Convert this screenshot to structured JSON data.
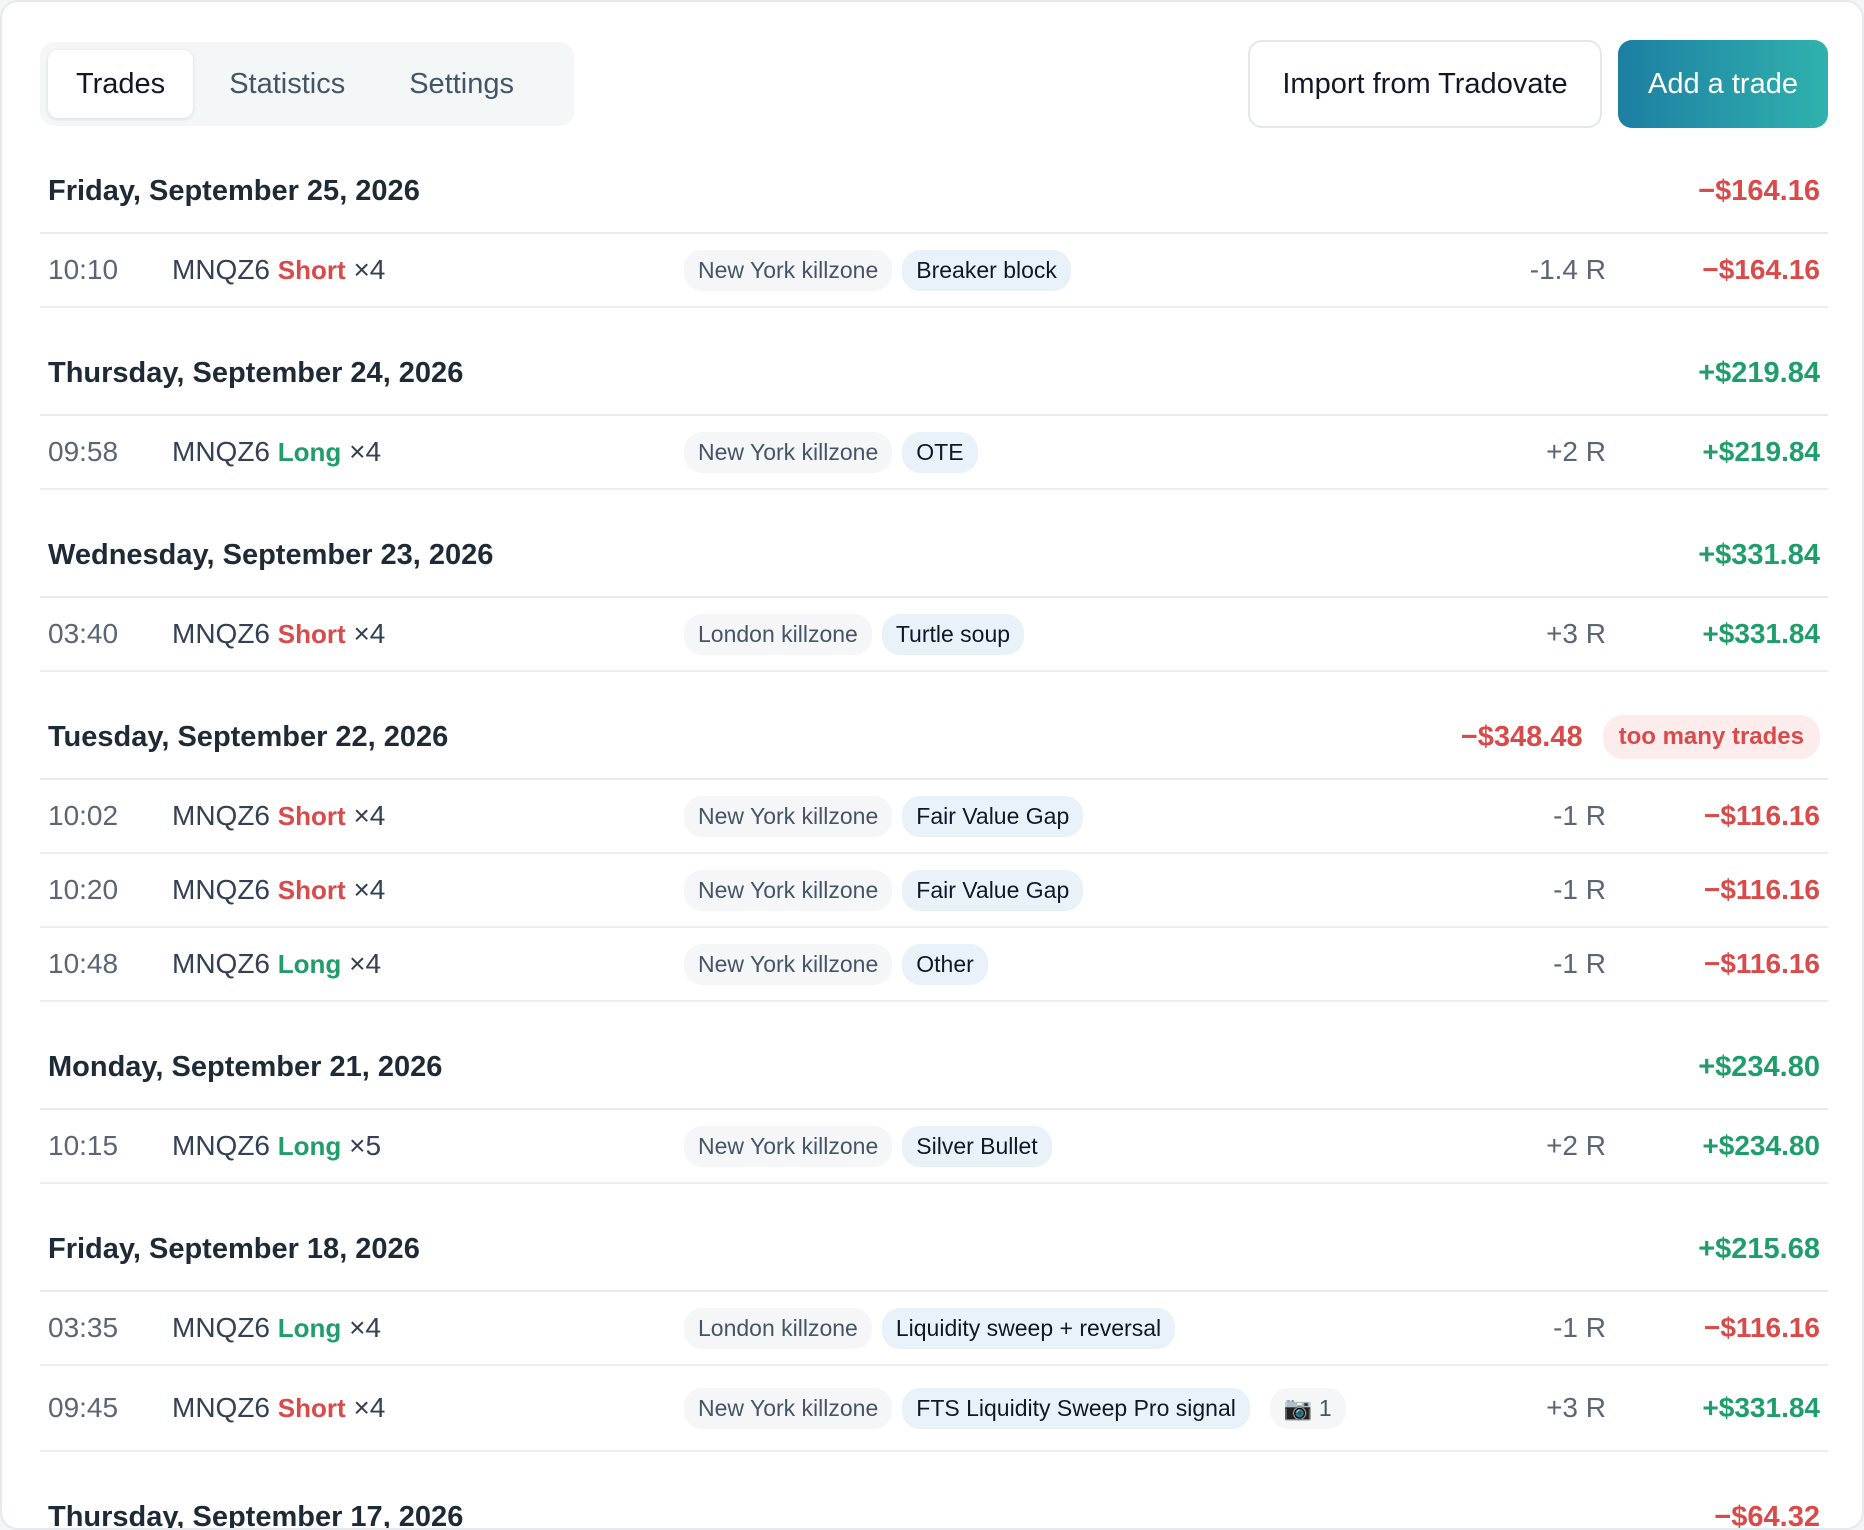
{
  "tabs": {
    "trades": "Trades",
    "statistics": "Statistics",
    "settings": "Settings"
  },
  "actions": {
    "import": "Import from Tradovate",
    "add": "Add a trade"
  },
  "days": [
    {
      "title": "Friday, September 25, 2026",
      "total": "−$164.16",
      "total_sign": "neg",
      "trades": [
        {
          "time": "10:10",
          "symbol": "MNQZ6",
          "side": "Short",
          "side_sign": "neg",
          "qty": "×4",
          "session": "New York killzone",
          "setup": "Breaker block",
          "r": "-1.4 R",
          "pnl": "−$164.16",
          "pnl_sign": "neg"
        }
      ]
    },
    {
      "title": "Thursday, September 24, 2026",
      "total": "+$219.84",
      "total_sign": "pos",
      "trades": [
        {
          "time": "09:58",
          "symbol": "MNQZ6",
          "side": "Long",
          "side_sign": "pos",
          "qty": "×4",
          "session": "New York killzone",
          "setup": "OTE",
          "r": "+2 R",
          "pnl": "+$219.84",
          "pnl_sign": "pos"
        }
      ]
    },
    {
      "title": "Wednesday, September 23, 2026",
      "total": "+$331.84",
      "total_sign": "pos",
      "trades": [
        {
          "time": "03:40",
          "symbol": "MNQZ6",
          "side": "Short",
          "side_sign": "neg",
          "qty": "×4",
          "session": "London killzone",
          "setup": "Turtle soup",
          "r": "+3 R",
          "pnl": "+$331.84",
          "pnl_sign": "pos"
        }
      ]
    },
    {
      "title": "Tuesday, September 22, 2026",
      "total": "−$348.48",
      "total_sign": "neg",
      "badge": "too many trades",
      "trades": [
        {
          "time": "10:02",
          "symbol": "MNQZ6",
          "side": "Short",
          "side_sign": "neg",
          "qty": "×4",
          "session": "New York killzone",
          "setup": "Fair Value Gap",
          "r": "-1 R",
          "pnl": "−$116.16",
          "pnl_sign": "neg"
        },
        {
          "time": "10:20",
          "symbol": "MNQZ6",
          "side": "Short",
          "side_sign": "neg",
          "qty": "×4",
          "session": "New York killzone",
          "setup": "Fair Value Gap",
          "r": "-1 R",
          "pnl": "−$116.16",
          "pnl_sign": "neg"
        },
        {
          "time": "10:48",
          "symbol": "MNQZ6",
          "side": "Long",
          "side_sign": "pos",
          "qty": "×4",
          "session": "New York killzone",
          "setup": "Other",
          "r": "-1 R",
          "pnl": "−$116.16",
          "pnl_sign": "neg"
        }
      ]
    },
    {
      "title": "Monday, September 21, 2026",
      "total": "+$234.80",
      "total_sign": "pos",
      "trades": [
        {
          "time": "10:15",
          "symbol": "MNQZ6",
          "side": "Long",
          "side_sign": "pos",
          "qty": "×5",
          "session": "New York killzone",
          "setup": "Silver Bullet",
          "r": "+2 R",
          "pnl": "+$234.80",
          "pnl_sign": "pos"
        }
      ]
    },
    {
      "title": "Friday, September 18, 2026",
      "total": "+$215.68",
      "total_sign": "pos",
      "trades": [
        {
          "time": "03:35",
          "symbol": "MNQZ6",
          "side": "Long",
          "side_sign": "pos",
          "qty": "×4",
          "session": "London killzone",
          "setup": "Liquidity sweep + reversal",
          "r": "-1 R",
          "pnl": "−$116.16",
          "pnl_sign": "neg"
        },
        {
          "time": "09:45",
          "symbol": "MNQZ6",
          "side": "Short",
          "side_sign": "neg",
          "qty": "×4",
          "session": "New York killzone",
          "setup": "FTS Liquidity Sweep Pro signal",
          "photo_icon": "camera-icon",
          "photos": "1",
          "r": "+3 R",
          "pnl": "+$331.84",
          "pnl_sign": "pos"
        }
      ]
    },
    {
      "title": "Thursday, September 17, 2026",
      "total": "−$64.32",
      "total_sign": "neg",
      "trades": []
    }
  ]
}
